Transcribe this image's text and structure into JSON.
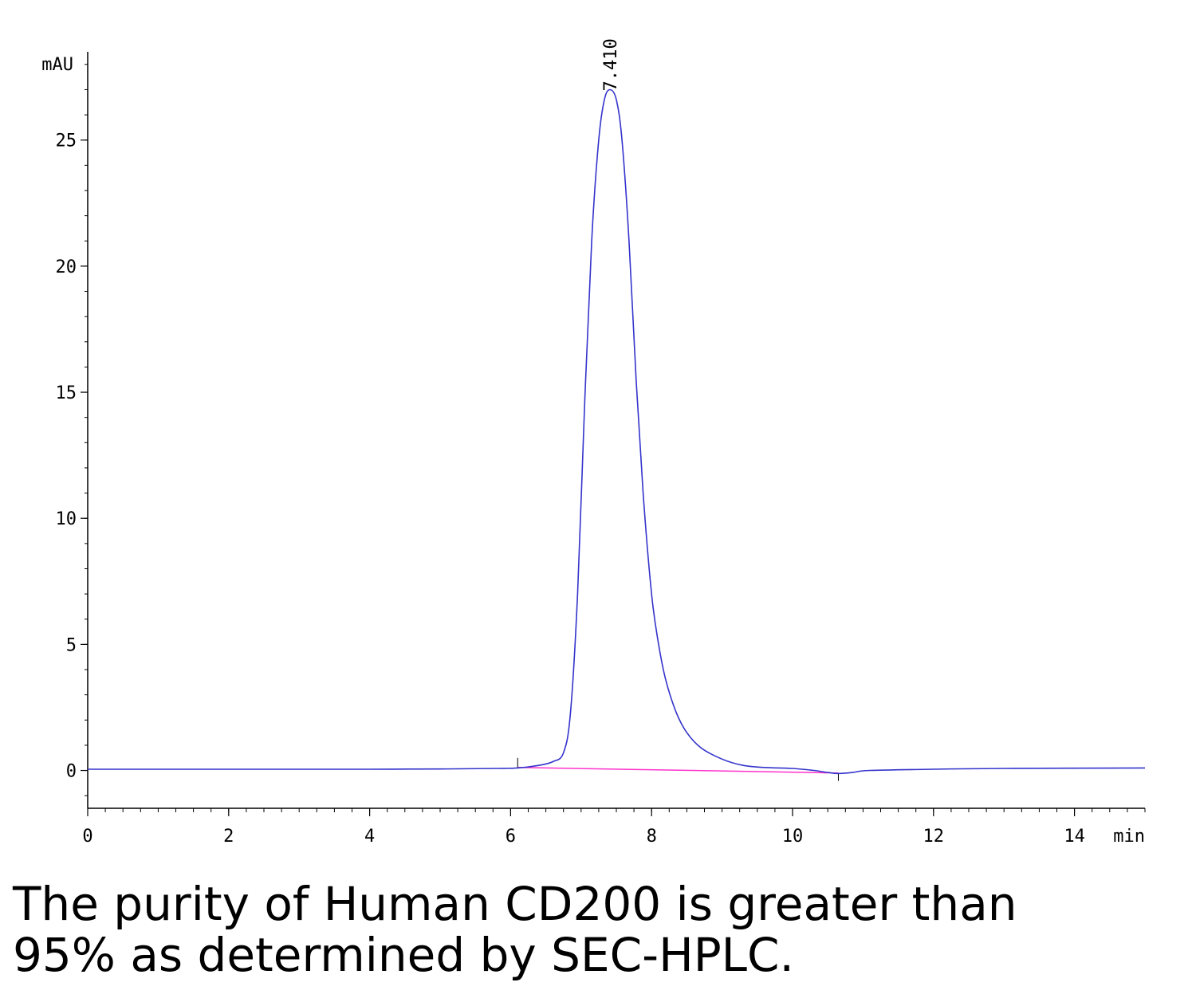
{
  "chart_data": {
    "type": "line",
    "title": "",
    "xlabel": "min",
    "ylabel": "mAU",
    "xlim": [
      0,
      15
    ],
    "ylim": [
      -1.5,
      28.5
    ],
    "x_ticks": [
      {
        "value": 0,
        "label": "0"
      },
      {
        "value": 2,
        "label": "2"
      },
      {
        "value": 4,
        "label": "4"
      },
      {
        "value": 6,
        "label": "6"
      },
      {
        "value": 8,
        "label": "8"
      },
      {
        "value": 10,
        "label": "10"
      },
      {
        "value": 12,
        "label": "12"
      },
      {
        "value": 14,
        "label": "14"
      }
    ],
    "y_ticks": [
      {
        "value": 0,
        "label": "0"
      },
      {
        "value": 5,
        "label": "5"
      },
      {
        "value": 10,
        "label": "10"
      },
      {
        "value": 15,
        "label": "15"
      },
      {
        "value": 20,
        "label": "20"
      },
      {
        "value": 25,
        "label": "25"
      }
    ],
    "grid": false,
    "legend": "none",
    "series": [
      {
        "color": "#3333cc",
        "x": [
          0,
          1,
          2,
          3,
          4,
          5,
          5.8,
          6.1,
          6.4,
          6.6,
          6.75,
          6.85,
          6.95,
          7.05,
          7.15,
          7.25,
          7.33,
          7.41,
          7.5,
          7.58,
          7.68,
          7.78,
          7.88,
          8.0,
          8.1,
          8.2,
          8.35,
          8.5,
          8.7,
          9.0,
          9.3,
          9.6,
          10.0,
          10.3,
          10.5,
          10.65,
          10.85,
          11.1,
          12,
          13,
          15
        ],
        "y": [
          0.05,
          0.05,
          0.05,
          0.05,
          0.05,
          0.06,
          0.08,
          0.1,
          0.2,
          0.35,
          0.7,
          2.3,
          7.0,
          14.5,
          21.0,
          25.0,
          26.6,
          27.0,
          26.6,
          25.0,
          21.0,
          15.5,
          11.0,
          7.0,
          5.0,
          3.6,
          2.3,
          1.5,
          0.9,
          0.45,
          0.2,
          0.12,
          0.08,
          0.0,
          -0.08,
          -0.12,
          -0.08,
          0.0,
          0.05,
          0.08,
          0.1
        ]
      }
    ],
    "baseline": {
      "color": "#ff33cc",
      "x": [
        6.1,
        10.65
      ],
      "y": [
        0.12,
        -0.1
      ]
    },
    "annotations": [
      {
        "text": "7.410",
        "x": 7.41,
        "y": 27.0
      }
    ]
  },
  "caption": {
    "line1": "The purity of Human CD200 is greater than",
    "line2": "95% as determined by SEC-HPLC."
  }
}
